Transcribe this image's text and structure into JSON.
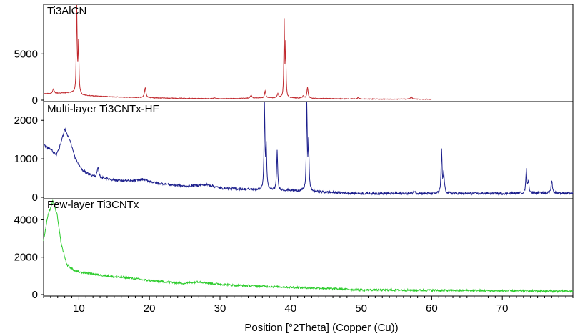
{
  "chart_data": {
    "type": "line",
    "x_axis": {
      "label": "Position [°2Theta] (Copper (Cu))",
      "range": [
        5,
        80
      ],
      "ticks": [
        10,
        20,
        30,
        40,
        50,
        60,
        70
      ]
    },
    "grid": false,
    "legend": "none",
    "panels": [
      {
        "name": "Ti3AlCN",
        "color": "#c0282d",
        "y_range": [
          0,
          10200
        ],
        "y_ticks": [
          0,
          5000
        ],
        "baseline": [
          [
            5,
            700
          ],
          [
            9,
            800
          ],
          [
            10.5,
            500
          ],
          [
            15,
            350
          ],
          [
            20,
            250
          ],
          [
            30,
            150
          ],
          [
            38,
            250
          ],
          [
            42,
            200
          ],
          [
            50,
            120
          ],
          [
            60,
            100
          ]
        ],
        "peaks": [
          {
            "x": 6.4,
            "y": 450,
            "w": 0.12
          },
          {
            "x": 9.7,
            "y": 9600,
            "w": 0.07
          },
          {
            "x": 9.95,
            "y": 5300,
            "w": 0.07
          },
          {
            "x": 19.4,
            "y": 1100,
            "w": 0.12
          },
          {
            "x": 29.2,
            "y": 80,
            "w": 0.15
          },
          {
            "x": 34.4,
            "y": 300,
            "w": 0.15
          },
          {
            "x": 36.4,
            "y": 750,
            "w": 0.1
          },
          {
            "x": 38.2,
            "y": 450,
            "w": 0.1
          },
          {
            "x": 39.1,
            "y": 8150,
            "w": 0.06
          },
          {
            "x": 39.3,
            "y": 5600,
            "w": 0.06
          },
          {
            "x": 41.8,
            "y": 250,
            "w": 0.12
          },
          {
            "x": 42.4,
            "y": 1200,
            "w": 0.1
          },
          {
            "x": 49.6,
            "y": 150,
            "w": 0.15
          },
          {
            "x": 57.1,
            "y": 250,
            "w": 0.15
          }
        ],
        "x_end": 60,
        "noise": 35
      },
      {
        "name": "Multi-layer Ti3CNTx-HF",
        "color": "#1c1f8c",
        "y_range": [
          0,
          2450
        ],
        "y_ticks": [
          0,
          1000,
          2000
        ],
        "baseline": [
          [
            5,
            1350
          ],
          [
            6,
            1250
          ],
          [
            6.8,
            1100
          ],
          [
            7.2,
            1250
          ],
          [
            8,
            1780
          ],
          [
            8.8,
            1450
          ],
          [
            9.5,
            1000
          ],
          [
            10.5,
            700
          ],
          [
            12,
            550
          ],
          [
            15,
            450
          ],
          [
            17.5,
            420
          ],
          [
            19,
            470
          ],
          [
            21,
            370
          ],
          [
            25,
            290
          ],
          [
            28.3,
            330
          ],
          [
            30,
            240
          ],
          [
            35,
            200
          ],
          [
            40,
            180
          ],
          [
            45,
            130
          ],
          [
            50,
            100
          ],
          [
            60,
            100
          ],
          [
            70,
            100
          ],
          [
            75,
            110
          ],
          [
            80,
            110
          ]
        ],
        "peaks": [
          {
            "x": 12.7,
            "y": 250,
            "w": 0.12
          },
          {
            "x": 36.3,
            "y": 2380,
            "w": 0.07
          },
          {
            "x": 36.55,
            "y": 1100,
            "w": 0.08
          },
          {
            "x": 38.1,
            "y": 1050,
            "w": 0.08
          },
          {
            "x": 42.3,
            "y": 2400,
            "w": 0.07
          },
          {
            "x": 42.55,
            "y": 1200,
            "w": 0.08
          },
          {
            "x": 57.5,
            "y": 60,
            "w": 0.15
          },
          {
            "x": 61.4,
            "y": 1120,
            "w": 0.08
          },
          {
            "x": 61.7,
            "y": 500,
            "w": 0.1
          },
          {
            "x": 73.4,
            "y": 650,
            "w": 0.08
          },
          {
            "x": 73.7,
            "y": 300,
            "w": 0.1
          },
          {
            "x": 77.0,
            "y": 350,
            "w": 0.1
          }
        ],
        "x_end": 80,
        "noise": 30
      },
      {
        "name": "Few-layer Ti3CNTx",
        "color": "#2ccc2c",
        "y_range": [
          0,
          5050
        ],
        "y_ticks": [
          0,
          2000,
          4000
        ],
        "baseline": [
          [
            5,
            2900
          ],
          [
            5.6,
            4200
          ],
          [
            6.3,
            5000
          ],
          [
            6.9,
            4300
          ],
          [
            7.5,
            2700
          ],
          [
            8.3,
            1600
          ],
          [
            9.5,
            1250
          ],
          [
            12,
            1100
          ],
          [
            15,
            950
          ],
          [
            17,
            900
          ],
          [
            20,
            750
          ],
          [
            25,
            600
          ],
          [
            27,
            700
          ],
          [
            28.5,
            600
          ],
          [
            32,
            500
          ],
          [
            38,
            420
          ],
          [
            45,
            330
          ],
          [
            50,
            250
          ],
          [
            60,
            230
          ],
          [
            70,
            200
          ],
          [
            80,
            180
          ]
        ],
        "peaks": [],
        "x_end": 80,
        "noise": 55
      }
    ]
  }
}
